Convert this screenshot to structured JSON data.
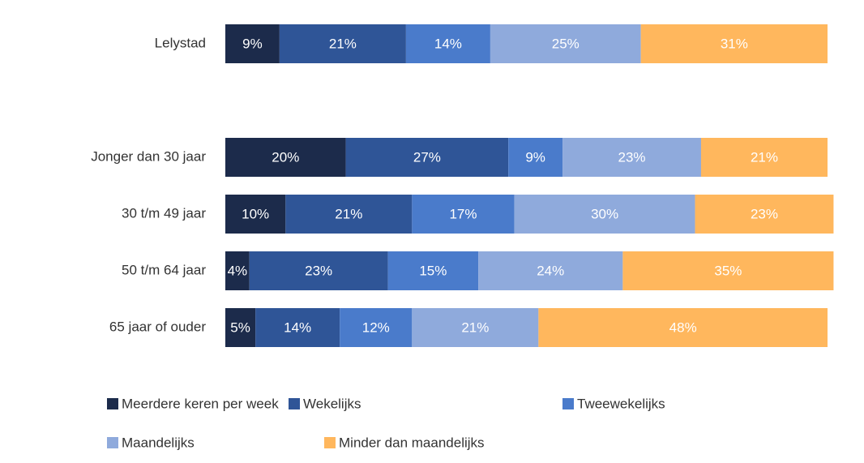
{
  "chart_data": {
    "type": "stacked-bar-horizontal",
    "categories": [
      "Lelystad",
      null,
      "Jonger dan 30 jaar",
      "30 t/m 49 jaar",
      "50 t/m 64 jaar",
      "65 jaar of ouder"
    ],
    "xlim": [
      0,
      100
    ],
    "series": [
      {
        "name": "Meerdere keren per week",
        "color": "#1c2b4b",
        "values": [
          9,
          null,
          20,
          10,
          4,
          5
        ],
        "value_labels": [
          "9%",
          null,
          "20%",
          "10%",
          "4%",
          "5%"
        ]
      },
      {
        "name": "Wekelijks",
        "color": "#2f5597",
        "values": [
          21,
          null,
          27,
          21,
          23,
          14
        ],
        "value_labels": [
          "21%",
          null,
          "27%",
          "21%",
          "23%",
          "14%"
        ]
      },
      {
        "name": "Tweewekelijks",
        "color": "#4a7bcb",
        "values": [
          14,
          null,
          9,
          17,
          15,
          12
        ],
        "value_labels": [
          "14%",
          null,
          "9%",
          "17%",
          "15%",
          "12%"
        ]
      },
      {
        "name": "Maandelijks",
        "color": "#8faadc",
        "values": [
          25,
          null,
          23,
          30,
          24,
          21
        ],
        "value_labels": [
          "25%",
          null,
          "23%",
          "30%",
          "24%",
          "21%"
        ]
      },
      {
        "name": "Minder dan maandelijks",
        "color": "#ffb75d",
        "values": [
          31,
          null,
          21,
          23,
          35,
          48
        ],
        "value_labels": [
          "31%",
          null,
          "21%",
          "23%",
          "35%",
          "48%"
        ]
      }
    ]
  }
}
